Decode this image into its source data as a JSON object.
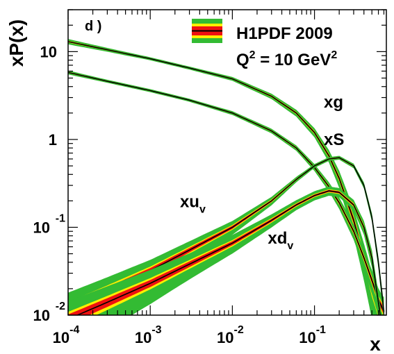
{
  "chart_data": {
    "type": "line",
    "panel_label": "d )",
    "title": "H1PDF 2009",
    "subtitle": "Q² = 10 GeV²",
    "xlabel": "x",
    "ylabel": "xP(x)",
    "x_scale": "log",
    "y_scale": "log",
    "xlim": [
      0.0001,
      0.75
    ],
    "ylim": [
      0.01,
      30
    ],
    "legend_position": "top-right",
    "x_ticks": [
      {
        "value": 0.0001,
        "base": "10",
        "exp": "-4"
      },
      {
        "value": 0.001,
        "base": "10",
        "exp": "-3"
      },
      {
        "value": 0.01,
        "base": "10",
        "exp": "-2"
      },
      {
        "value": 0.1,
        "base": "10",
        "exp": "-1"
      }
    ],
    "y_ticks": [
      {
        "value": 0.01,
        "base": "10",
        "exp": "-2"
      },
      {
        "value": 0.1,
        "base": "10",
        "exp": "-1"
      },
      {
        "value": 1,
        "base": "1",
        "exp": ""
      },
      {
        "value": 10,
        "base": "10",
        "exp": ""
      }
    ],
    "band_colors": {
      "model": "#33bb33",
      "exp": "#ffee00",
      "total_inner": "#ee1111",
      "central": "#000000"
    },
    "series": [
      {
        "name": "xg",
        "label": "xg",
        "label_at": [
          0.13,
          2.3
        ],
        "x": [
          0.0001,
          0.0003,
          0.001,
          0.003,
          0.01,
          0.03,
          0.06,
          0.1,
          0.15,
          0.2,
          0.3,
          0.4,
          0.5,
          0.6,
          0.7
        ],
        "y": [
          13,
          10.5,
          8.3,
          6.5,
          4.9,
          3.1,
          2.0,
          1.2,
          0.65,
          0.36,
          0.12,
          0.045,
          0.02,
          0.012,
          0.01
        ],
        "unc": [
          0.07,
          0.05,
          0.04,
          0.04,
          0.05,
          0.07,
          0.09,
          0.12,
          0.16,
          0.22,
          0.35,
          0.45,
          0.55,
          0.6,
          0.6
        ]
      },
      {
        "name": "xS",
        "label": "xS",
        "label_at": [
          0.13,
          0.86
        ],
        "x": [
          0.0001,
          0.0003,
          0.001,
          0.003,
          0.01,
          0.03,
          0.06,
          0.1,
          0.15,
          0.2,
          0.3,
          0.4,
          0.5,
          0.6,
          0.7
        ],
        "y": [
          5.8,
          4.6,
          3.6,
          2.8,
          2.0,
          1.25,
          0.8,
          0.48,
          0.29,
          0.19,
          0.09,
          0.045,
          0.025,
          0.015,
          0.011
        ],
        "unc": [
          0.05,
          0.04,
          0.04,
          0.04,
          0.05,
          0.06,
          0.07,
          0.09,
          0.12,
          0.15,
          0.2,
          0.25,
          0.3,
          0.35,
          0.4
        ]
      },
      {
        "name": "xu_v",
        "label": "xu",
        "label_sub": "v",
        "label_at": [
          0.0023,
          0.17
        ],
        "x": [
          0.0001,
          0.0003,
          0.001,
          0.003,
          0.01,
          0.03,
          0.06,
          0.1,
          0.15,
          0.2,
          0.3,
          0.4,
          0.5,
          0.6,
          0.7
        ],
        "y": [
          0.012,
          0.019,
          0.032,
          0.055,
          0.1,
          0.2,
          0.35,
          0.5,
          0.6,
          0.62,
          0.5,
          0.3,
          0.13,
          0.04,
          0.011
        ],
        "unc": [
          0.5,
          0.42,
          0.33,
          0.26,
          0.18,
          0.11,
          0.07,
          0.05,
          0.05,
          0.05,
          0.06,
          0.08,
          0.11,
          0.15,
          0.2
        ]
      },
      {
        "name": "xd_v",
        "label": "xd",
        "label_sub": "v",
        "label_at": [
          0.027,
          0.065
        ],
        "x": [
          0.0001,
          0.0003,
          0.001,
          0.003,
          0.01,
          0.03,
          0.06,
          0.1,
          0.15,
          0.2,
          0.3,
          0.4,
          0.5,
          0.6,
          0.7
        ],
        "y": [
          0.009,
          0.014,
          0.023,
          0.038,
          0.066,
          0.12,
          0.18,
          0.23,
          0.26,
          0.25,
          0.18,
          0.1,
          0.045,
          0.014,
          0.005
        ],
        "unc": [
          0.6,
          0.52,
          0.42,
          0.33,
          0.24,
          0.17,
          0.13,
          0.12,
          0.12,
          0.12,
          0.14,
          0.18,
          0.22,
          0.28,
          0.35
        ]
      }
    ]
  }
}
